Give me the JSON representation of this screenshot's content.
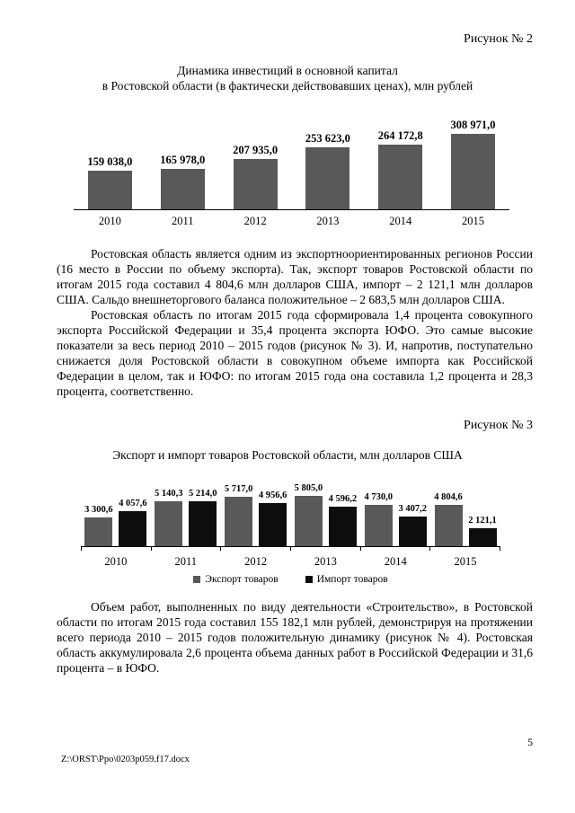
{
  "figures": {
    "fig2": "Рисунок № 2",
    "fig3": "Рисунок № 3"
  },
  "paragraphs": {
    "p1": "Ростовская область является одним из экспортноориентированных регионов России (16 место в России по объему экспорта). Так, экспорт товаров Ростовской области по итогам 2015 года составил 4 804,6 млн долларов США, импорт – 2 121,1 млн долларов США. Сальдо внешнеторгового баланса положительное – 2 683,5 млн долларов США.",
    "p2": "Ростовская область по итогам 2015 года сформировала 1,4 процента совокупного экспорта Российской Федерации и 35,4 процента экспорта ЮФО. Это самые высокие показатели за весь период 2010 – 2015 годов (рисунок № 3). И, напротив, поступательно снижается доля Ростовской области в совокупном объеме импорта как Российской Федерации в целом, так и ЮФО: по итогам 2015 года она составила 1,2 процента и 28,3 процента, соответственно.",
    "p3": "Объем работ, выполненных по виду деятельности «Строительство», в Ростовской области по итогам 2015 года составил 155 182,1 млн рублей, демонстрируя на протяжении всего периода 2010 – 2015 годов положительную динамику (рисунок № 4). Ростовская область аккумулировала 2,6 процента объема данных работ в Российской Федерации и 31,6 процента – в ЮФО."
  },
  "footer": {
    "file_path": "Z:\\ORST\\Ppo\\0203p059.f17.docx",
    "page_number": "5"
  },
  "chart_data": [
    {
      "type": "bar",
      "title": "Динамика инвестиций в основной капитал в Ростовской области (в фактически действовавших ценах), млн рублей",
      "title_line1": "Динамика инвестиций в основной капитал",
      "title_line2": "в Ростовской области (в фактически действовавших ценах), млн рублей",
      "categories": [
        "2010",
        "2011",
        "2012",
        "2013",
        "2014",
        "2015"
      ],
      "values": [
        159038.0,
        165978.0,
        207935.0,
        253623.0,
        264172.8,
        308971.0
      ],
      "value_labels": [
        "159 038,0",
        "165 978,0",
        "207 935,0",
        "253 623,0",
        "264 172,8",
        "308 971,0"
      ],
      "bar_color": "#595959",
      "xlabel": "",
      "ylabel": "",
      "ylim": [
        0,
        308971
      ],
      "grid": false,
      "legend": false,
      "data_labels": true
    },
    {
      "type": "bar",
      "title": "Экспорт и импорт товаров Ростовской области, млн долларов США",
      "categories": [
        "2010",
        "2011",
        "2012",
        "2013",
        "2014",
        "2015"
      ],
      "series": [
        {
          "name": "Экспорт товаров",
          "color": "#595959",
          "values": [
            3300.6,
            5140.3,
            5717.0,
            5805.0,
            4730.0,
            4804.6
          ],
          "value_labels": [
            "3 300,6",
            "5 140,3",
            "5 717,0",
            "5 805,0",
            "4 730,0",
            "4 804,6"
          ]
        },
        {
          "name": "Импорт товаров",
          "color": "#0d0d0d",
          "values": [
            4057.6,
            5214.0,
            4956.6,
            4596.2,
            3407.2,
            2121.1
          ],
          "value_labels": [
            "4 057,6",
            "5 214,0",
            "4 956,6",
            "4 596,2",
            "3 407,2",
            "2 121,1"
          ]
        }
      ],
      "xlabel": "",
      "ylabel": "",
      "ylim": [
        0,
        5805
      ],
      "grid": false,
      "legend": true,
      "legend_position": "bottom",
      "data_labels": true
    }
  ]
}
